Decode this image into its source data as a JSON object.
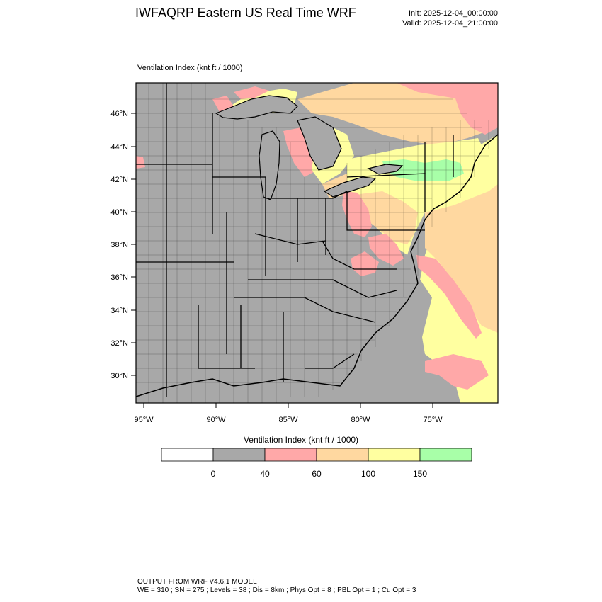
{
  "title": "IWFAQRP Eastern US Real Time WRF",
  "init_label": "Init: 2025-12-04_00:00:00",
  "valid_label": "Valid: 2025-12-04_21:00:00",
  "field_label": "Ventilation Index   (knt ft / 1000)",
  "latitude_labels": [
    "46°N",
    "44°N",
    "42°N",
    "40°N",
    "38°N",
    "36°N",
    "34°N",
    "32°N",
    "30°N"
  ],
  "longitude_labels": [
    "95°W",
    "90°W",
    "85°W",
    "80°W",
    "75°W"
  ],
  "colorbar": {
    "title": "Ventilation Index  (knt ft / 1000)",
    "ticks": [
      "0",
      "40",
      "60",
      "100",
      "150"
    ],
    "bins": [
      {
        "color": "#ffffff"
      },
      {
        "color": "#a8a8a8"
      },
      {
        "color": "#ffa8a8"
      },
      {
        "color": "#ffd8a0"
      },
      {
        "color": "#ffffa0"
      },
      {
        "color": "#a8ffa8"
      }
    ]
  },
  "colors": {
    "land_low": "#a8a8a8",
    "water": "#a8a8a8",
    "pink": "#ffa8a8",
    "orange": "#ffd8a0",
    "yellow": "#ffffa0",
    "green": "#a8ffa8"
  },
  "footer": {
    "line1": "OUTPUT FROM WRF V4.6.1 MODEL",
    "line2": "WE = 310 ; SN = 275 ; Levels = 38 ; Dis = 8km ; Phys Opt = 8 ; PBL Opt = 1 ; Cu Opt = 3"
  }
}
